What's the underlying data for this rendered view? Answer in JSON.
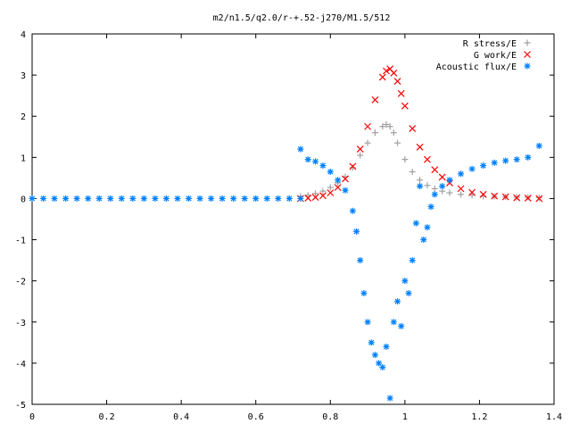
{
  "chart_data": {
    "type": "scatter",
    "title": "m2/n1.5/q2.0/r-+.52-j270/M1.5/512",
    "xlabel": "",
    "ylabel": "",
    "xlim": [
      0,
      1.4
    ],
    "ylim": [
      -5,
      4
    ],
    "x_ticks": [
      "0",
      "0.2",
      "0.4",
      "0.6",
      "0.8",
      "1",
      "1.2",
      "1.4"
    ],
    "y_ticks": [
      "4",
      "3",
      "2",
      "1",
      "0",
      "-1",
      "-2",
      "-3",
      "-4",
      "-5"
    ],
    "grid": false,
    "legend_position": "top-right",
    "series": [
      {
        "name": "R stress/E",
        "marker": "+",
        "color": "#a0a0a0",
        "x": [
          0.72,
          0.74,
          0.76,
          0.78,
          0.8,
          0.82,
          0.84,
          0.86,
          0.88,
          0.9,
          0.92,
          0.94,
          0.95,
          0.96,
          0.97,
          0.98,
          1.0,
          1.02,
          1.04,
          1.06,
          1.08,
          1.1,
          1.12,
          1.15,
          1.18,
          1.21,
          1.24,
          1.27,
          1.3,
          1.33,
          1.36
        ],
        "y": [
          0.05,
          0.08,
          0.12,
          0.18,
          0.27,
          0.38,
          0.53,
          0.75,
          1.05,
          1.35,
          1.6,
          1.75,
          1.8,
          1.75,
          1.6,
          1.35,
          0.95,
          0.65,
          0.45,
          0.32,
          0.24,
          0.18,
          0.14,
          0.1,
          0.08,
          0.06,
          0.05,
          0.04,
          0.03,
          0.03,
          0.02
        ]
      },
      {
        "name": "G work/E",
        "marker": "x",
        "color": "#ff0000",
        "x": [
          0.72,
          0.74,
          0.76,
          0.78,
          0.8,
          0.82,
          0.84,
          0.86,
          0.88,
          0.9,
          0.92,
          0.94,
          0.95,
          0.96,
          0.97,
          0.98,
          0.99,
          1.0,
          1.02,
          1.04,
          1.06,
          1.08,
          1.1,
          1.12,
          1.15,
          1.18,
          1.21,
          1.24,
          1.27,
          1.3,
          1.33,
          1.36
        ],
        "y": [
          0.0,
          0.01,
          0.03,
          0.07,
          0.14,
          0.27,
          0.48,
          0.78,
          1.2,
          1.75,
          2.4,
          2.95,
          3.1,
          3.15,
          3.05,
          2.85,
          2.55,
          2.25,
          1.7,
          1.25,
          0.95,
          0.7,
          0.52,
          0.38,
          0.24,
          0.15,
          0.1,
          0.06,
          0.04,
          0.02,
          0.01,
          0.0
        ]
      },
      {
        "name": "Acoustic flux/E",
        "marker": "*",
        "color": "#0080ff",
        "x": [
          0.0,
          0.03,
          0.06,
          0.09,
          0.12,
          0.15,
          0.18,
          0.21,
          0.24,
          0.27,
          0.3,
          0.33,
          0.36,
          0.39,
          0.42,
          0.45,
          0.48,
          0.51,
          0.54,
          0.57,
          0.6,
          0.63,
          0.66,
          0.69,
          0.72,
          0.72,
          0.74,
          0.76,
          0.78,
          0.8,
          0.82,
          0.84,
          0.86,
          0.87,
          0.88,
          0.89,
          0.9,
          0.91,
          0.92,
          0.93,
          0.94,
          0.95,
          0.96,
          0.97,
          0.98,
          0.99,
          1.0,
          1.01,
          1.02,
          1.03,
          1.04,
          1.05,
          1.06,
          1.07,
          1.08,
          1.1,
          1.12,
          1.15,
          1.18,
          1.21,
          1.24,
          1.27,
          1.3,
          1.33,
          1.36
        ],
        "y": [
          0.0,
          0.0,
          0.0,
          0.0,
          0.0,
          0.0,
          0.0,
          0.0,
          0.0,
          0.0,
          0.0,
          0.0,
          0.0,
          0.0,
          0.0,
          0.0,
          0.0,
          0.0,
          0.0,
          0.0,
          0.0,
          0.0,
          0.0,
          0.0,
          0.0,
          1.2,
          0.95,
          0.9,
          0.8,
          0.65,
          0.45,
          0.2,
          -0.3,
          -0.8,
          -1.5,
          -2.3,
          -3.0,
          -3.5,
          -3.8,
          -4.0,
          -4.1,
          -3.6,
          -4.85,
          -3.0,
          -2.5,
          -3.1,
          -2.0,
          -2.3,
          -1.5,
          -0.6,
          0.3,
          -1.0,
          -0.7,
          -0.2,
          0.1,
          0.3,
          0.45,
          0.6,
          0.72,
          0.8,
          0.87,
          0.92,
          0.95,
          1.0,
          1.28
        ]
      }
    ]
  }
}
